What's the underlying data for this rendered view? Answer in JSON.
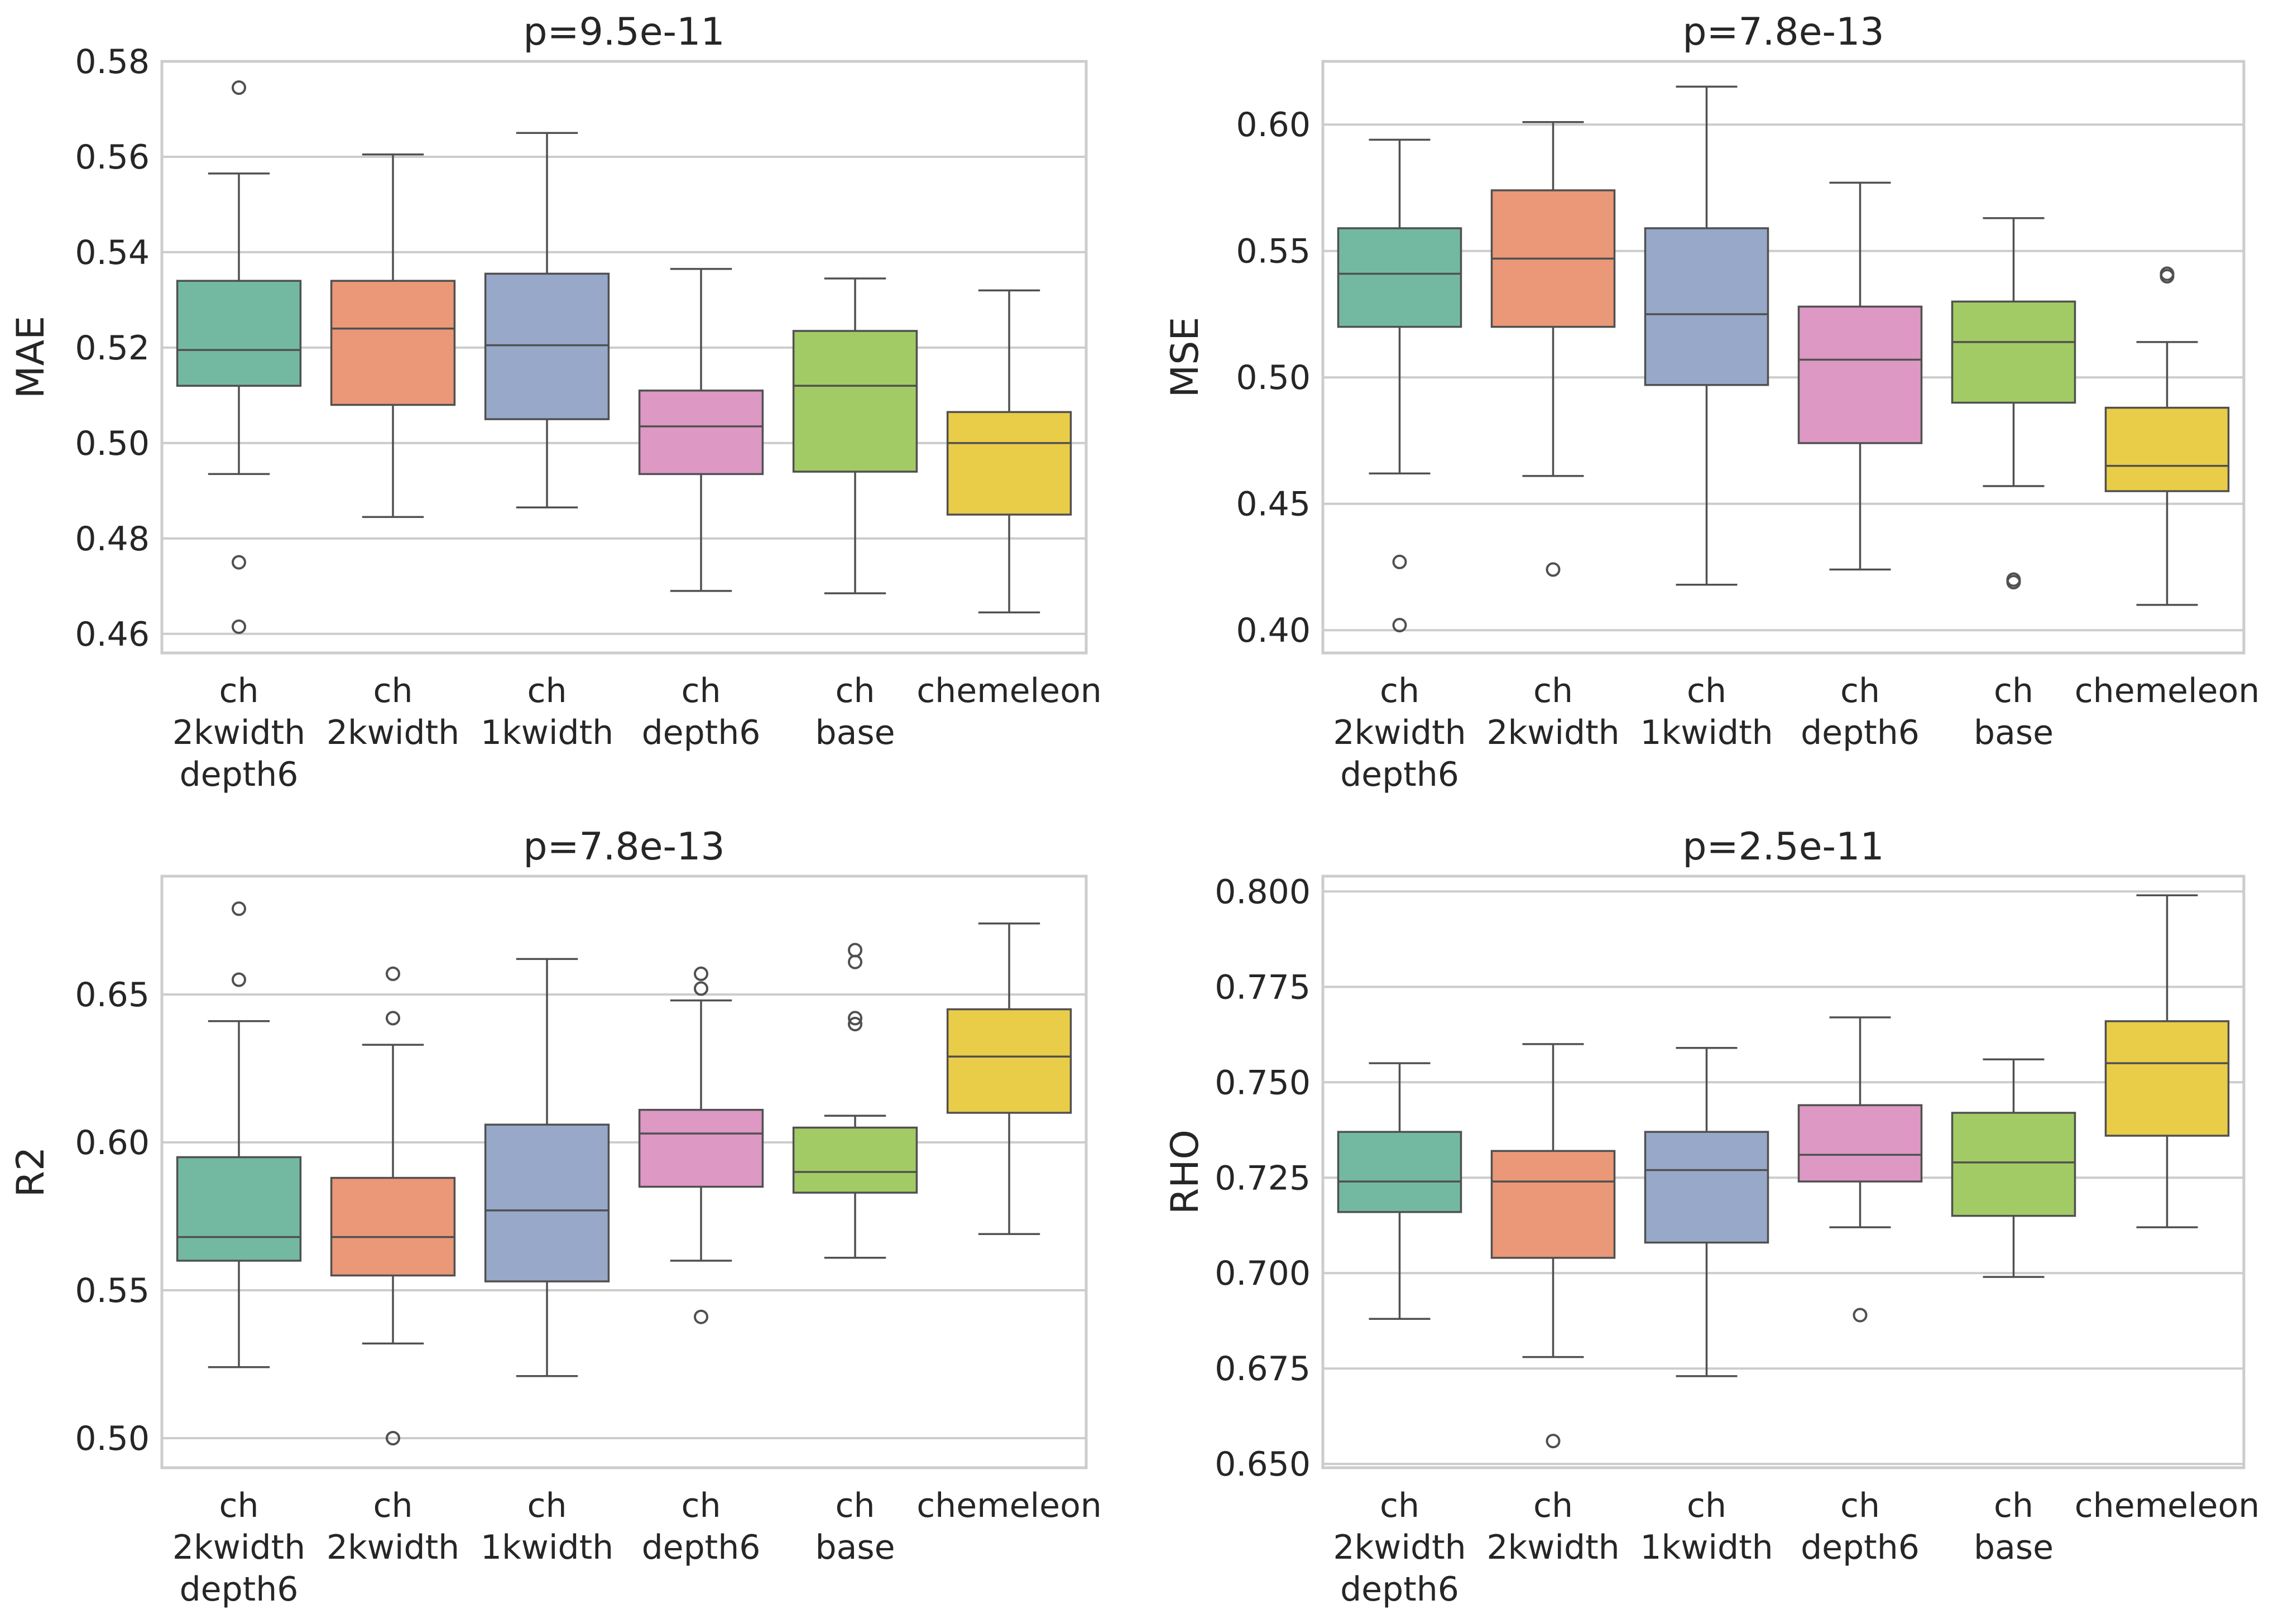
{
  "chart_data": [
    {
      "type": "box",
      "title": "p=9.5e-11",
      "ylabel": "MAE",
      "ylim": [
        0.456,
        0.58
      ],
      "yticks": [
        0.46,
        0.48,
        0.5,
        0.52,
        0.54,
        0.56,
        0.58
      ],
      "ytick_labels": [
        "0.46",
        "0.48",
        "0.50",
        "0.52",
        "0.54",
        "0.56",
        "0.58"
      ],
      "categories": [
        [
          "ch",
          "2kwidth",
          "depth6"
        ],
        [
          "ch",
          "2kwidth"
        ],
        [
          "ch",
          "1kwidth"
        ],
        [
          "ch",
          "depth6"
        ],
        [
          "ch",
          "base"
        ],
        [
          "chemeleon"
        ]
      ],
      "boxes": [
        {
          "whislo": 0.4935,
          "q1": 0.512,
          "med": 0.5195,
          "q3": 0.534,
          "whishi": 0.5565,
          "fliers": [
            0.5745,
            0.475,
            0.4615
          ]
        },
        {
          "whislo": 0.4845,
          "q1": 0.508,
          "med": 0.524,
          "q3": 0.534,
          "whishi": 0.5605,
          "fliers": []
        },
        {
          "whislo": 0.4865,
          "q1": 0.505,
          "med": 0.5205,
          "q3": 0.5355,
          "whishi": 0.565,
          "fliers": []
        },
        {
          "whislo": 0.469,
          "q1": 0.4935,
          "med": 0.5035,
          "q3": 0.511,
          "whishi": 0.5365,
          "fliers": []
        },
        {
          "whislo": 0.4685,
          "q1": 0.494,
          "med": 0.512,
          "q3": 0.5235,
          "whishi": 0.5345,
          "fliers": []
        },
        {
          "whislo": 0.4645,
          "q1": 0.485,
          "med": 0.5,
          "q3": 0.5065,
          "whishi": 0.532,
          "fliers": []
        }
      ]
    },
    {
      "type": "box",
      "title": "p=7.8e-13",
      "ylabel": "MSE",
      "ylim": [
        0.391,
        0.625
      ],
      "yticks": [
        0.4,
        0.45,
        0.5,
        0.55,
        0.6
      ],
      "ytick_labels": [
        "0.40",
        "0.45",
        "0.50",
        "0.55",
        "0.60"
      ],
      "categories": [
        [
          "ch",
          "2kwidth",
          "depth6"
        ],
        [
          "ch",
          "2kwidth"
        ],
        [
          "ch",
          "1kwidth"
        ],
        [
          "ch",
          "depth6"
        ],
        [
          "ch",
          "base"
        ],
        [
          "chemeleon"
        ]
      ],
      "boxes": [
        {
          "whislo": 0.462,
          "q1": 0.52,
          "med": 0.541,
          "q3": 0.559,
          "whishi": 0.594,
          "fliers": [
            0.427,
            0.402
          ]
        },
        {
          "whislo": 0.461,
          "q1": 0.52,
          "med": 0.547,
          "q3": 0.574,
          "whishi": 0.601,
          "fliers": [
            0.424
          ]
        },
        {
          "whislo": 0.418,
          "q1": 0.497,
          "med": 0.525,
          "q3": 0.559,
          "whishi": 0.615,
          "fliers": []
        },
        {
          "whislo": 0.424,
          "q1": 0.474,
          "med": 0.507,
          "q3": 0.528,
          "whishi": 0.577,
          "fliers": []
        },
        {
          "whislo": 0.457,
          "q1": 0.49,
          "med": 0.514,
          "q3": 0.53,
          "whishi": 0.563,
          "fliers": [
            0.42,
            0.419
          ]
        },
        {
          "whislo": 0.41,
          "q1": 0.455,
          "med": 0.465,
          "q3": 0.488,
          "whishi": 0.514,
          "fliers": [
            0.541,
            0.54
          ]
        }
      ]
    },
    {
      "type": "box",
      "title": "p=7.8e-13",
      "ylabel": "R2",
      "ylim": [
        0.49,
        0.69
      ],
      "yticks": [
        0.5,
        0.55,
        0.6,
        0.65
      ],
      "ytick_labels": [
        "0.50",
        "0.55",
        "0.60",
        "0.65"
      ],
      "categories": [
        [
          "ch",
          "2kwidth",
          "depth6"
        ],
        [
          "ch",
          "2kwidth"
        ],
        [
          "ch",
          "1kwidth"
        ],
        [
          "ch",
          "depth6"
        ],
        [
          "ch",
          "base"
        ],
        [
          "chemeleon"
        ]
      ],
      "boxes": [
        {
          "whislo": 0.524,
          "q1": 0.56,
          "med": 0.568,
          "q3": 0.595,
          "whishi": 0.641,
          "fliers": [
            0.679,
            0.655
          ]
        },
        {
          "whislo": 0.532,
          "q1": 0.555,
          "med": 0.568,
          "q3": 0.588,
          "whishi": 0.633,
          "fliers": [
            0.657,
            0.642,
            0.5
          ]
        },
        {
          "whislo": 0.521,
          "q1": 0.553,
          "med": 0.577,
          "q3": 0.606,
          "whishi": 0.662,
          "fliers": []
        },
        {
          "whislo": 0.56,
          "q1": 0.585,
          "med": 0.603,
          "q3": 0.611,
          "whishi": 0.648,
          "fliers": [
            0.657,
            0.652,
            0.541
          ]
        },
        {
          "whislo": 0.561,
          "q1": 0.583,
          "med": 0.59,
          "q3": 0.605,
          "whishi": 0.609,
          "fliers": [
            0.665,
            0.661,
            0.642,
            0.64
          ]
        },
        {
          "whislo": 0.569,
          "q1": 0.61,
          "med": 0.629,
          "q3": 0.645,
          "whishi": 0.674,
          "fliers": []
        }
      ]
    },
    {
      "type": "box",
      "title": "p=2.5e-11",
      "ylabel": "RHO",
      "ylim": [
        0.649,
        0.804
      ],
      "yticks": [
        0.65,
        0.675,
        0.7,
        0.725,
        0.75,
        0.775,
        0.8
      ],
      "ytick_labels": [
        "0.650",
        "0.675",
        "0.700",
        "0.725",
        "0.750",
        "0.775",
        "0.800"
      ],
      "categories": [
        [
          "ch",
          "2kwidth",
          "depth6"
        ],
        [
          "ch",
          "2kwidth"
        ],
        [
          "ch",
          "1kwidth"
        ],
        [
          "ch",
          "depth6"
        ],
        [
          "ch",
          "base"
        ],
        [
          "chemeleon"
        ]
      ],
      "boxes": [
        {
          "whislo": 0.688,
          "q1": 0.716,
          "med": 0.724,
          "q3": 0.737,
          "whishi": 0.755,
          "fliers": []
        },
        {
          "whislo": 0.678,
          "q1": 0.704,
          "med": 0.724,
          "q3": 0.732,
          "whishi": 0.76,
          "fliers": [
            0.656
          ]
        },
        {
          "whislo": 0.673,
          "q1": 0.708,
          "med": 0.727,
          "q3": 0.737,
          "whishi": 0.759,
          "fliers": []
        },
        {
          "whislo": 0.712,
          "q1": 0.724,
          "med": 0.731,
          "q3": 0.744,
          "whishi": 0.767,
          "fliers": [
            0.689
          ]
        },
        {
          "whislo": 0.699,
          "q1": 0.715,
          "med": 0.729,
          "q3": 0.742,
          "whishi": 0.756,
          "fliers": []
        },
        {
          "whislo": 0.712,
          "q1": 0.736,
          "med": 0.755,
          "q3": 0.766,
          "whishi": 0.799,
          "fliers": []
        }
      ]
    }
  ],
  "colors": {
    "boxes": [
      "#73b9a1",
      "#ea9877",
      "#97a8c9",
      "#dd98c4",
      "#a3cb65",
      "#e9cc48"
    ],
    "grid": "#cccccc",
    "frame": "#cccccc",
    "lines": "#505050",
    "text": "#262626"
  }
}
